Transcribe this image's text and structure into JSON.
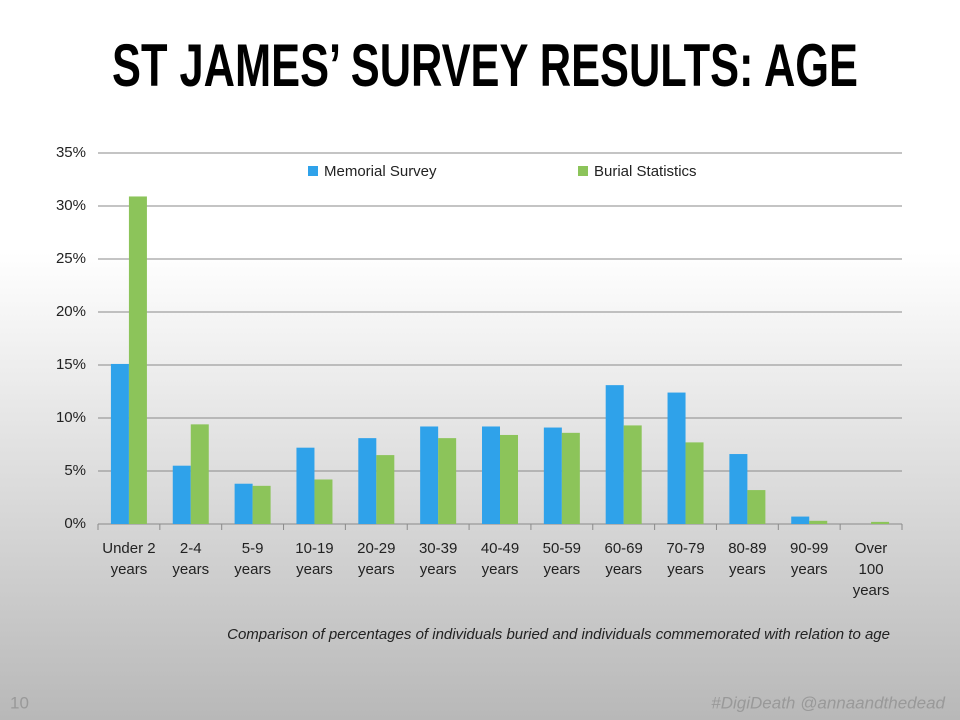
{
  "chart_data": {
    "type": "bar",
    "title": "ST JAMES’ SURVEY RESULTS: AGE",
    "caption": "Comparison of percentages of individuals buried and individuals commemorated with relation to age",
    "categories": [
      "Under 2 years",
      "2-4 years",
      "5-9 years",
      "10-19 years",
      "20-29 years",
      "30-39 years",
      "40-49 years",
      "50-59 years",
      "60-69 years",
      "70-79 years",
      "80-89 years",
      "90-99 years",
      "Over 100 years"
    ],
    "series": [
      {
        "name": "Memorial Survey",
        "color": "#2fa2ea",
        "values": [
          15.1,
          5.5,
          3.8,
          7.2,
          8.1,
          9.2,
          9.2,
          9.1,
          13.1,
          12.4,
          6.6,
          0.7,
          0
        ]
      },
      {
        "name": "Burial Statistics",
        "color": "#8cc45a",
        "values": [
          30.9,
          9.4,
          3.6,
          4.2,
          6.5,
          8.1,
          8.4,
          8.6,
          9.3,
          7.7,
          3.2,
          0.3,
          0.2
        ]
      }
    ],
    "ylim": [
      0,
      35
    ],
    "yticks": [
      {
        "value": 0,
        "label": "0%"
      },
      {
        "value": 5,
        "label": "5%"
      },
      {
        "value": 10,
        "label": "10%"
      },
      {
        "value": 15,
        "label": "15%"
      },
      {
        "value": 20,
        "label": "20%"
      },
      {
        "value": 25,
        "label": "25%"
      },
      {
        "value": 30,
        "label": "30%"
      },
      {
        "value": 35,
        "label": "35%"
      }
    ],
    "grid": true,
    "legend": "top"
  },
  "footer": {
    "slide_number": "10",
    "hashtag": "#DigiDeath @annaandthedead"
  }
}
